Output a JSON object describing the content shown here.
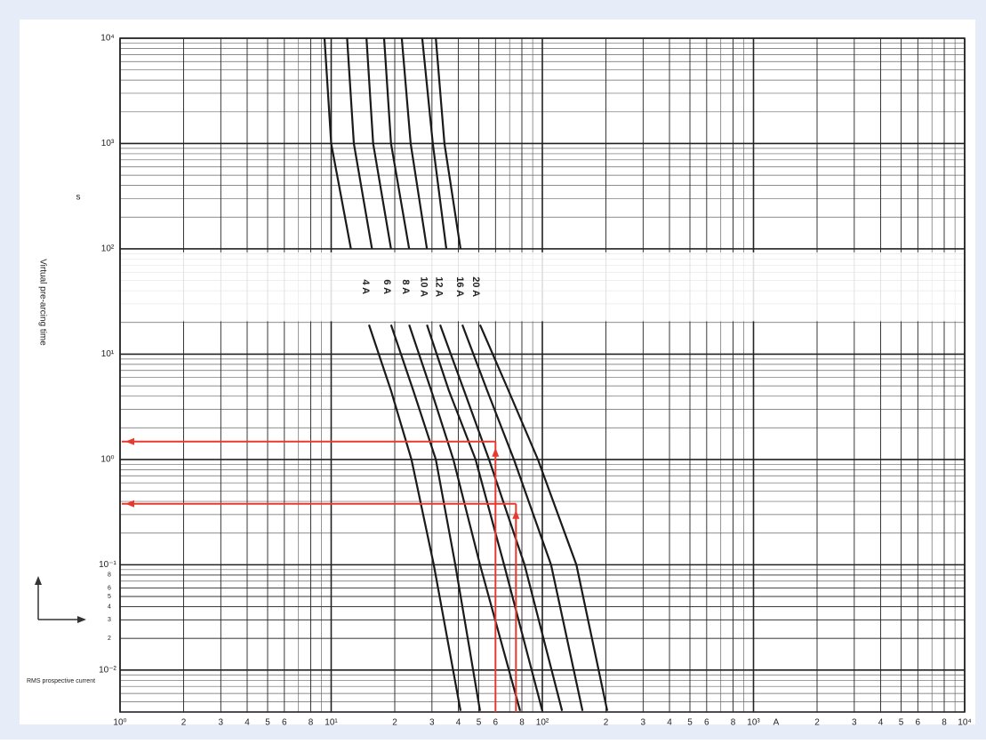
{
  "chart_data": {
    "type": "line",
    "log_x": true,
    "log_y": true,
    "grid": true,
    "x_label": "RMS prospective current",
    "x_unit": "A",
    "y_label": "Virtual pre-arcing time",
    "y_unit": "s",
    "xlim": [
      1,
      10000
    ],
    "ylim": [
      0.004,
      10000
    ],
    "xticks": [
      {
        "value": 1,
        "label": "10⁰"
      },
      2,
      3,
      4,
      5,
      6,
      8,
      {
        "value": 10,
        "label": "10¹"
      },
      {
        "value": 20,
        "label": "2"
      },
      {
        "value": 30,
        "label": "3"
      },
      {
        "value": 40,
        "label": "4"
      },
      {
        "value": 50,
        "label": "5"
      },
      {
        "value": 60,
        "label": "6"
      },
      {
        "value": 80,
        "label": "8"
      },
      {
        "value": 100,
        "label": "10²"
      },
      {
        "value": 200,
        "label": "2"
      },
      {
        "value": 300,
        "label": "3"
      },
      {
        "value": 400,
        "label": "4"
      },
      {
        "value": 500,
        "label": "5"
      },
      {
        "value": 600,
        "label": "6"
      },
      {
        "value": 800,
        "label": "8"
      },
      {
        "value": 1000,
        "label": "10³"
      },
      {
        "value": 2000,
        "label": "2"
      },
      {
        "value": 3000,
        "label": "3"
      },
      {
        "value": 4000,
        "label": "4"
      },
      {
        "value": 5000,
        "label": "5"
      },
      {
        "value": 6000,
        "label": "6"
      },
      {
        "value": 8000,
        "label": "8"
      },
      {
        "value": 10000,
        "label": "10⁴"
      }
    ],
    "yticks": [
      {
        "value": 0.01,
        "label": "10⁻²"
      },
      {
        "value": 0.02,
        "label": "2"
      },
      {
        "value": 0.03,
        "label": "3"
      },
      {
        "value": 0.04,
        "label": "4"
      },
      {
        "value": 0.05,
        "label": "5"
      },
      {
        "value": 0.06,
        "label": "6"
      },
      {
        "value": 0.08,
        "label": "8"
      },
      {
        "value": 0.1,
        "label": "10⁻¹"
      },
      {
        "value": 1,
        "label": "10⁰"
      },
      {
        "value": 10,
        "label": "10¹"
      },
      {
        "value": 100,
        "label": "10²"
      },
      {
        "value": 1000,
        "label": "10³"
      },
      {
        "value": 10000,
        "label": "10⁴"
      }
    ],
    "series": [
      {
        "name": "4 A",
        "color": "#1a1a1a",
        "x": [
          9.3,
          10,
          12.4,
          null,
          15.1,
          19.2,
          24,
          30.6,
          41
        ],
        "values": [
          10000,
          1000,
          100,
          null,
          19,
          4.5,
          1,
          0.1,
          0.0041
        ]
      },
      {
        "name": "6 A",
        "color": "#1a1a1a",
        "x": [
          11.9,
          12.8,
          15.6,
          null,
          19.2,
          24.5,
          31.3,
          38.7,
          50.7
        ],
        "values": [
          10000,
          1000,
          100,
          null,
          19,
          4.5,
          1,
          0.1,
          0.0041
        ]
      },
      {
        "name": "8 A",
        "color": "#1a1a1a",
        "x": [
          14.7,
          15.8,
          19.2,
          null,
          23.4,
          29.8,
          37.9,
          50.7,
          78.5
        ],
        "values": [
          10000,
          1000,
          100,
          null,
          19,
          4.5,
          1,
          0.1,
          0.0041
        ]
      },
      {
        "name": "10 A",
        "color": "#1a1a1a",
        "x": [
          17.8,
          19.2,
          23.4,
          null,
          28.4,
          36.1,
          48.3,
          65.9,
          100
        ],
        "values": [
          10000,
          1000,
          100,
          null,
          19,
          4.5,
          1,
          0.1,
          0.0041
        ]
      },
      {
        "name": "12 A",
        "color": "#1a1a1a",
        "x": [
          21.6,
          23.8,
          28.4,
          null,
          32.8,
          42.6,
          55.9,
          82.4,
          124
        ],
        "values": [
          10000,
          1000,
          100,
          null,
          19,
          4.5,
          1,
          0.1,
          0.0041
        ]
      },
      {
        "name": "16 A",
        "color": "#1a1a1a",
        "x": [
          27,
          30.3,
          35.1,
          null,
          41.8,
          54.8,
          73.3,
          110,
          155
        ],
        "values": [
          10000,
          1000,
          100,
          null,
          19,
          4.5,
          1,
          0.1,
          0.0041
        ]
      },
      {
        "name": "20 A",
        "color": "#1a1a1a",
        "x": [
          31.3,
          34.4,
          41,
          null,
          50.7,
          69.2,
          95.3,
          145,
          203
        ],
        "values": [
          10000,
          1000,
          100,
          null,
          19,
          4.5,
          1,
          0.1,
          0.0041
        ]
      }
    ],
    "readings": [
      {
        "x": 60,
        "y": 1.48,
        "color": "#e8392f"
      },
      {
        "x": 75,
        "y": 0.38,
        "color": "#e8392f"
      }
    ]
  }
}
